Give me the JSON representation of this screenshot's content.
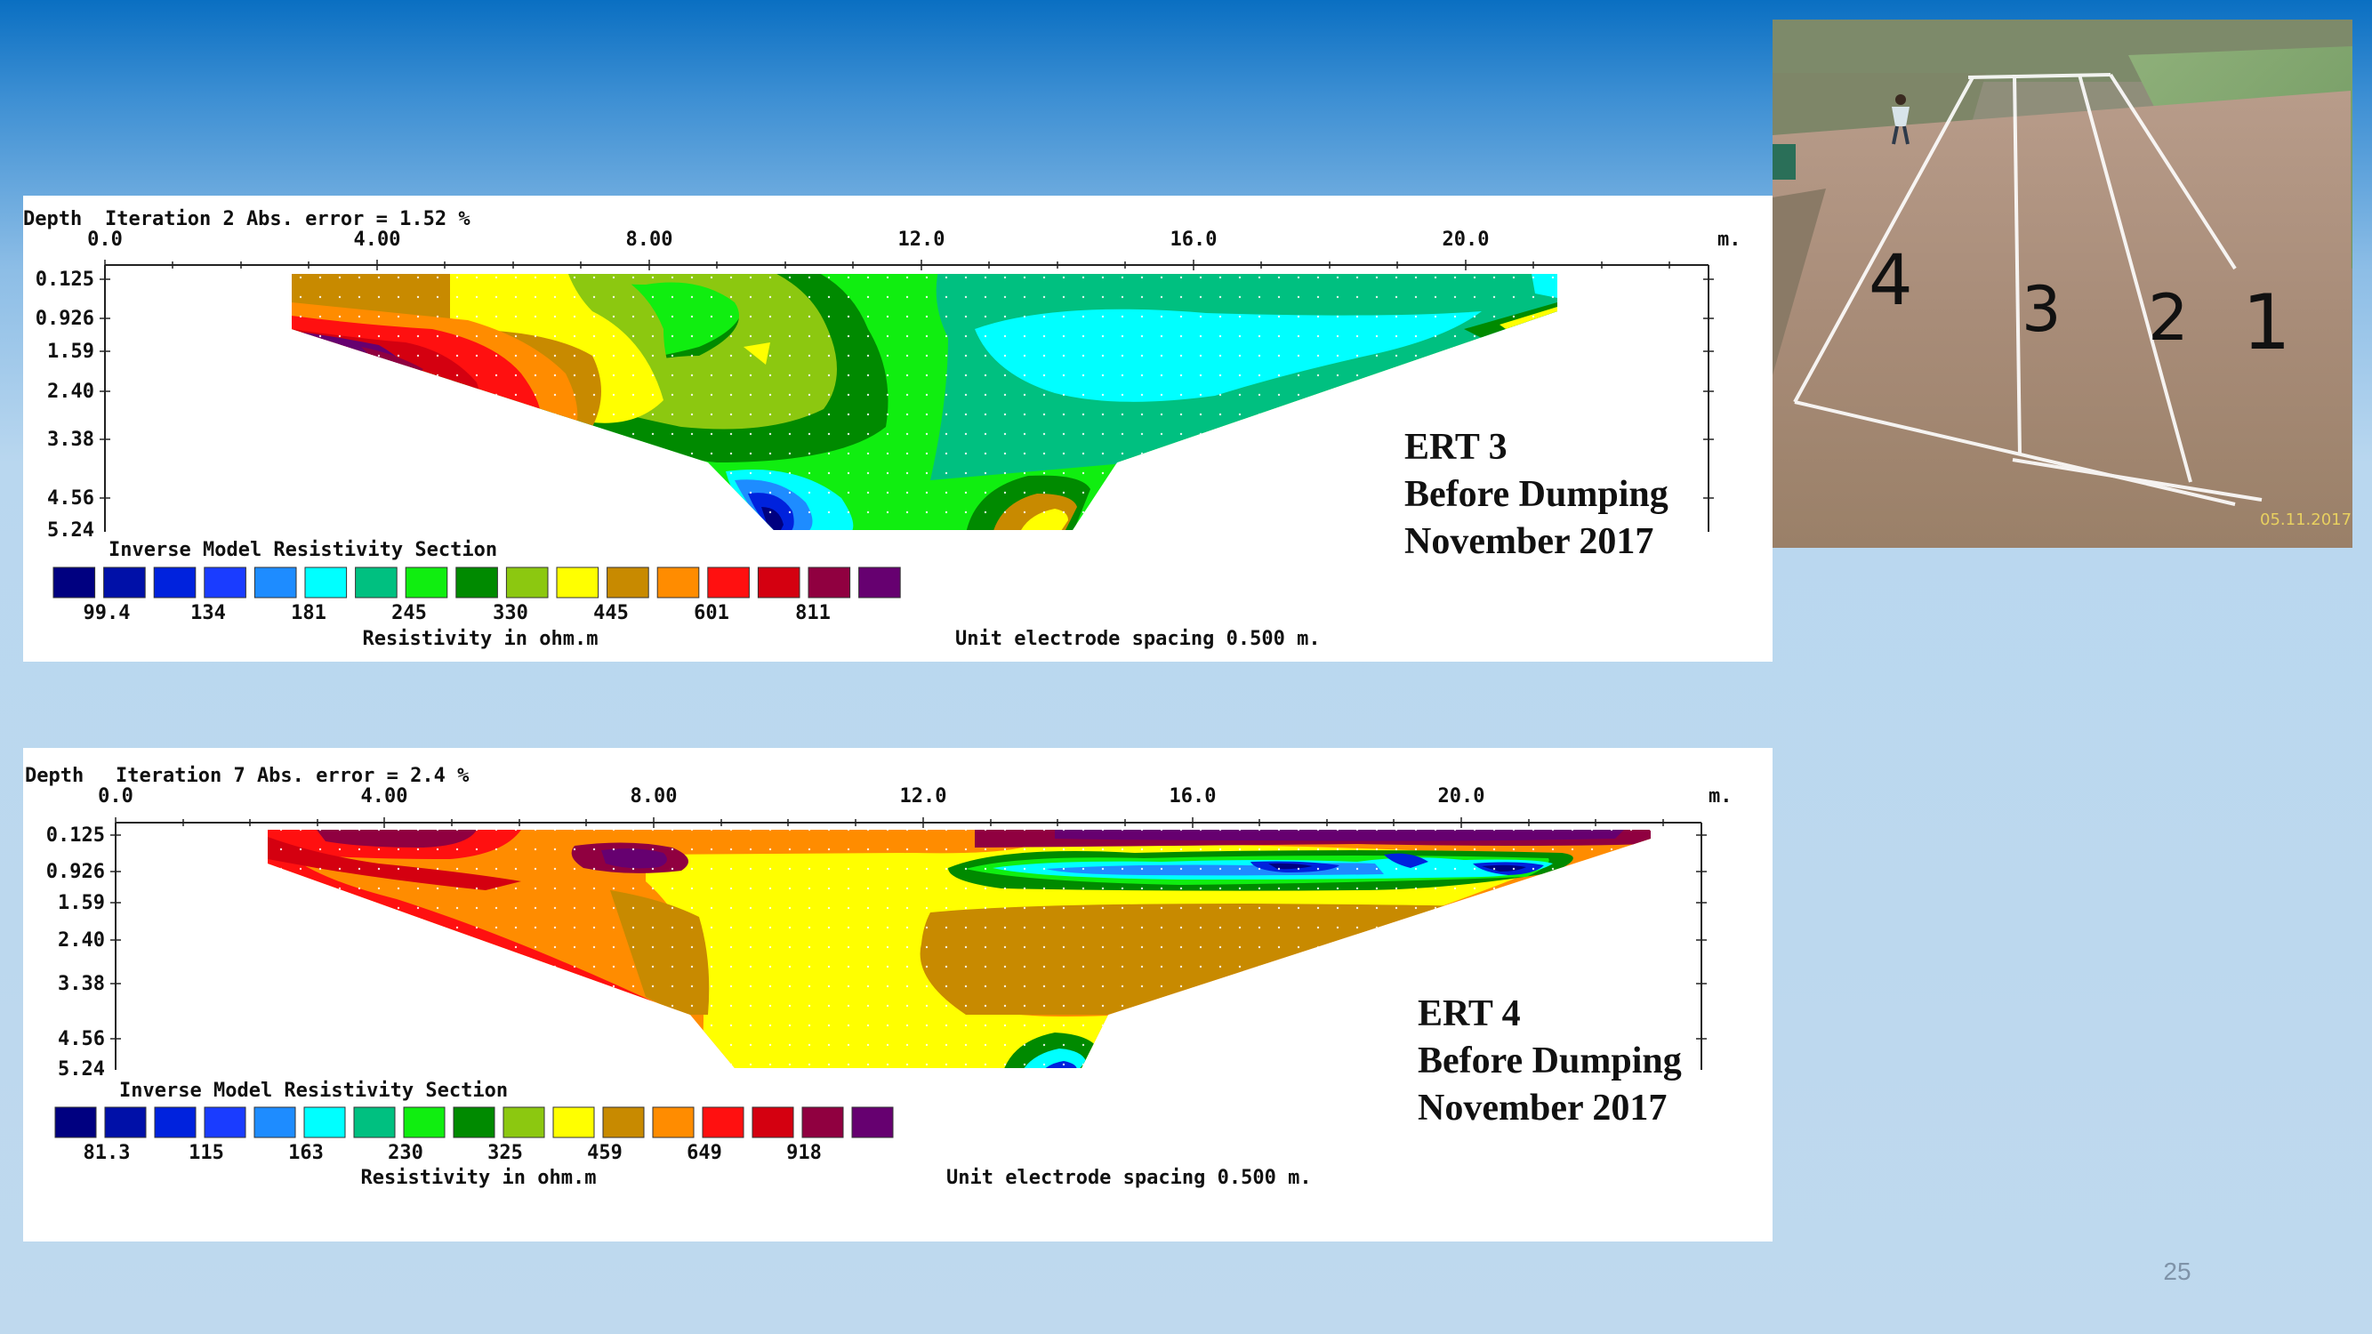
{
  "slide": {
    "page_number": "25"
  },
  "photo": {
    "lane_labels": [
      "4",
      "3",
      "2",
      "1"
    ],
    "date_stamp": "05.11.2017"
  },
  "panels": [
    {
      "id": "ert3",
      "header": {
        "depth_label": "Depth",
        "iteration_text": "Iteration 2 Abs. error = 1.52 %",
        "unit_label": "m."
      },
      "x_ticks": [
        "0.0",
        "4.00",
        "8.00",
        "12.0",
        "16.0",
        "20.0"
      ],
      "depth_ticks": [
        "0.125",
        "0.926",
        "1.59",
        "2.40",
        "3.38",
        "4.56",
        "5.24"
      ],
      "section_title": "Inverse Model Resistivity Section",
      "legend_values": [
        "99.4",
        "134",
        "181",
        "245",
        "330",
        "445",
        "601",
        "811"
      ],
      "legend_axis_label": "Resistivity in ohm.m",
      "spacing_text": "Unit electrode spacing 0.500 m.",
      "annotation": [
        "ERT 3",
        "Before Dumping",
        "November 2017"
      ]
    },
    {
      "id": "ert4",
      "header": {
        "depth_label": "Depth",
        "iteration_text": "Iteration 7 Abs. error = 2.4 %",
        "unit_label": "m."
      },
      "x_ticks": [
        "0.0",
        "4.00",
        "8.00",
        "12.0",
        "16.0",
        "20.0"
      ],
      "depth_ticks": [
        "0.125",
        "0.926",
        "1.59",
        "2.40",
        "3.38",
        "4.56",
        "5.24"
      ],
      "section_title": "Inverse Model Resistivity Section",
      "legend_values": [
        "81.3",
        "115",
        "163",
        "230",
        "325",
        "459",
        "649",
        "918"
      ],
      "legend_axis_label": "Resistivity in ohm.m",
      "spacing_text": "Unit electrode spacing 0.500 m.",
      "annotation": [
        "ERT 4",
        "Before Dumping",
        "November 2017"
      ]
    }
  ],
  "legend_colors": [
    "#000080",
    "#0010a8",
    "#0022dd",
    "#1a3cff",
    "#1e8cff",
    "#00ffff",
    "#00c080",
    "#10ee10",
    "#008a00",
    "#8cc810",
    "#ffff00",
    "#c88a00",
    "#ff8c00",
    "#ff1010",
    "#d40010",
    "#900040",
    "#660070"
  ]
}
